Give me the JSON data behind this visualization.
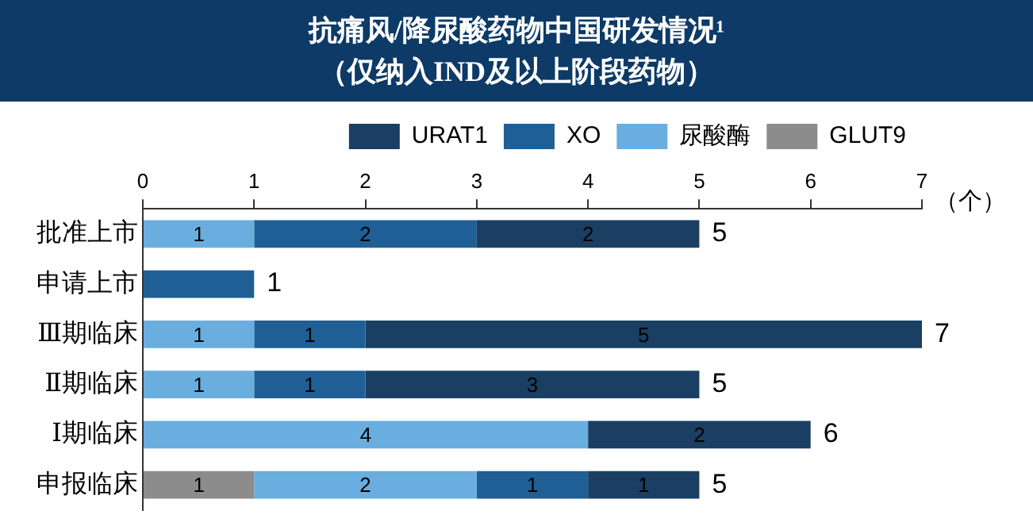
{
  "chart_data": {
    "type": "bar",
    "orientation": "horizontal",
    "stacked": true,
    "title": "抗痛风/降尿酸药物中国研发情况¹",
    "subtitle": "（仅纳入IND及以上阶段药物）",
    "xlabel": "（个）",
    "categories": [
      "批准上市",
      "申请上市",
      "Ⅲ期临床",
      "Ⅱ期临床",
      "Ⅰ期临床",
      "申报临床"
    ],
    "series": [
      {
        "name": "GLUT9",
        "color": "#8c8c8c",
        "values": [
          null,
          null,
          null,
          null,
          null,
          1
        ],
        "value_labels": [
          null,
          null,
          null,
          null,
          null,
          "1"
        ]
      },
      {
        "name": "尿酸酶",
        "color": "#6aaee0",
        "values": [
          1,
          null,
          1,
          1,
          4,
          2
        ],
        "value_labels": [
          "1",
          null,
          "1",
          "1",
          "4",
          "2"
        ]
      },
      {
        "name": "XO",
        "color": "#1f5f96",
        "values": [
          2,
          1,
          1,
          1,
          null,
          1
        ],
        "value_labels": [
          "2",
          null,
          "1",
          "1",
          null,
          "1"
        ]
      },
      {
        "name": "URAT1",
        "color": "#1a3f63",
        "values": [
          2,
          null,
          5,
          3,
          2,
          1
        ],
        "value_labels": [
          "2",
          null,
          "5",
          "3",
          "2",
          "1"
        ]
      }
    ],
    "totals": [
      "5",
      "1",
      "7",
      "5",
      "6",
      "5"
    ],
    "xlim": [
      0,
      7
    ],
    "xticks": [
      0,
      1,
      2,
      3,
      4,
      5,
      6,
      7
    ],
    "grid": false,
    "legend": "top right"
  }
}
